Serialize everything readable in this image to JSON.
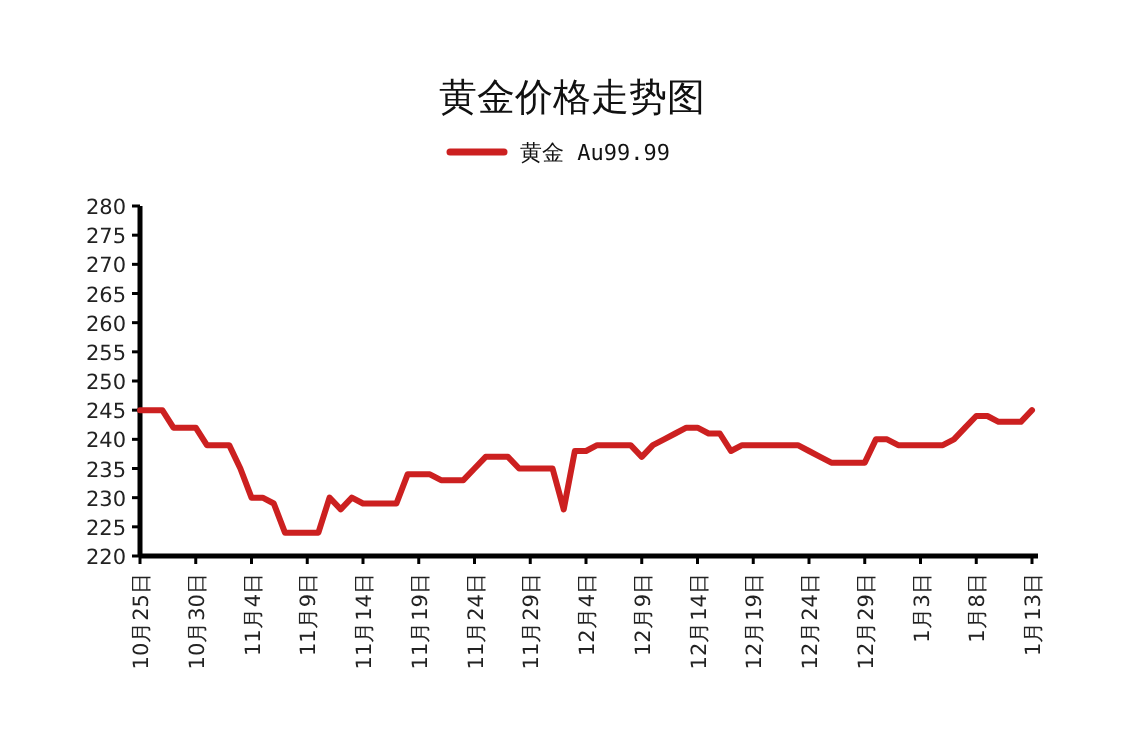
{
  "chart_data": {
    "type": "line",
    "title": "黄金价格走势图",
    "categories": [
      "10月25日",
      null,
      null,
      null,
      null,
      "10月30日",
      null,
      null,
      null,
      null,
      "11月4日",
      null,
      null,
      null,
      null,
      "11月9日",
      null,
      null,
      null,
      null,
      "11月14日",
      null,
      null,
      null,
      null,
      "11月19日",
      null,
      null,
      null,
      null,
      "11月24日",
      null,
      null,
      null,
      null,
      "11月29日",
      null,
      null,
      null,
      null,
      "12月4日",
      null,
      null,
      null,
      null,
      "12月9日",
      null,
      null,
      null,
      null,
      "12月14日",
      null,
      null,
      null,
      null,
      "12月19日",
      null,
      null,
      null,
      null,
      "12月24日",
      null,
      null,
      null,
      null,
      "12月29日",
      null,
      null,
      null,
      null,
      "1月3日",
      null,
      null,
      null,
      null,
      "1月8日",
      null,
      null,
      null,
      null,
      "1月13日"
    ],
    "series": [
      {
        "name": "黄金 Au99.99",
        "color": "#cc2020",
        "values": [
          245,
          245,
          245,
          242,
          242,
          242,
          239,
          239,
          239,
          235,
          230,
          230,
          229,
          224,
          224,
          224,
          224,
          230,
          228,
          230,
          229,
          229,
          229,
          229,
          234,
          234,
          234,
          233,
          233,
          233,
          235,
          237,
          237,
          237,
          235,
          235,
          235,
          235,
          228,
          238,
          238,
          239,
          239,
          239,
          239,
          237,
          239,
          240,
          241,
          242,
          242,
          241,
          241,
          238,
          239,
          239,
          239,
          239,
          239,
          239,
          238,
          237,
          236,
          236,
          236,
          236,
          240,
          240,
          239,
          239,
          239,
          239,
          239,
          240,
          242,
          244,
          244,
          243,
          243,
          243,
          245
        ]
      }
    ],
    "ylim": [
      220,
      280
    ],
    "yticks": [
      220,
      225,
      230,
      235,
      240,
      245,
      250,
      255,
      260,
      265,
      270,
      275,
      280
    ],
    "legend": "top"
  }
}
